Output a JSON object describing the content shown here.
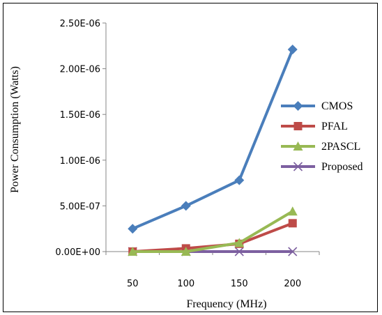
{
  "chart_data": {
    "type": "line",
    "xlabel": "Frequency (MHz)",
    "ylabel": "Power Consumption (Watts)",
    "categories": [
      "50",
      "100",
      "150",
      "200"
    ],
    "x": [
      50,
      100,
      150,
      200
    ],
    "ylim": [
      0,
      2.5e-06
    ],
    "y_ticks": [
      {
        "value": 0,
        "label": "0.00E+00"
      },
      {
        "value": 5e-07,
        "label": "5.00E-07"
      },
      {
        "value": 1e-06,
        "label": "1.00E-06"
      },
      {
        "value": 1.5e-06,
        "label": "1.50E-06"
      },
      {
        "value": 2e-06,
        "label": "2.00E-06"
      },
      {
        "value": 2.5e-06,
        "label": "2.50E-06"
      }
    ],
    "grid": false,
    "legend_position": "right",
    "series": [
      {
        "name": "CMOS",
        "color": "#4a7ebb",
        "marker": "diamond",
        "values": [
          2.5e-07,
          5e-07,
          7.8e-07,
          2.21e-06
        ]
      },
      {
        "name": "PFAL",
        "color": "#be4b48",
        "marker": "square",
        "values": [
          0,
          3.5e-08,
          8.5e-08,
          3.1e-07
        ]
      },
      {
        "name": "2PASCL",
        "color": "#98b954",
        "marker": "triangle",
        "values": [
          0,
          0,
          9.5e-08,
          4.4e-07
        ]
      },
      {
        "name": "Proposed",
        "color": "#7d60a0",
        "marker": "x",
        "values": [
          0,
          0,
          0,
          0
        ]
      }
    ]
  }
}
